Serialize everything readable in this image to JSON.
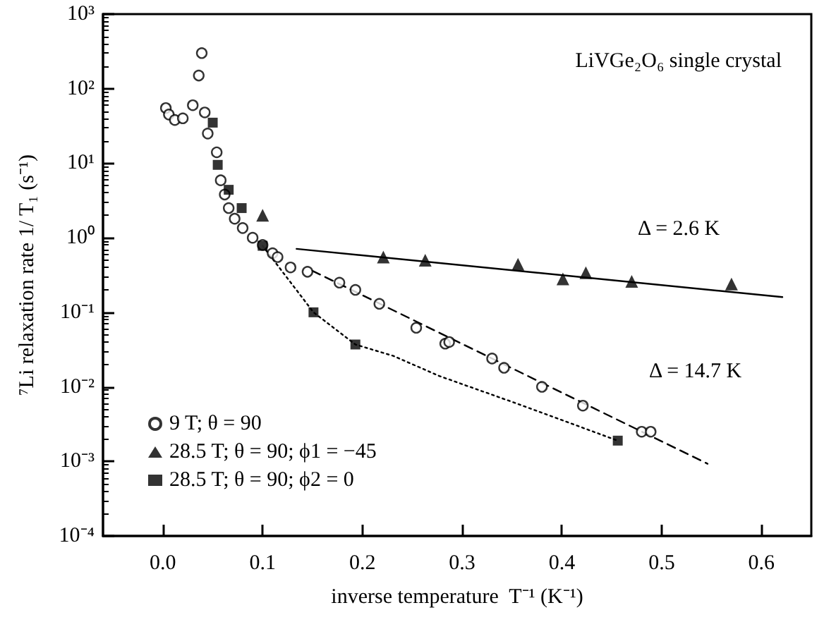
{
  "chart_data": {
    "type": "scatter",
    "xlabel": "inverse temperature  T⁻¹ (K⁻¹)",
    "ylabel": "⁷Li relaxation rate 1/ T₁ (s⁻¹)",
    "xlim": [
      -0.06,
      0.65
    ],
    "xticks": [
      {
        "value": 0,
        "label": "0.0"
      },
      {
        "value": 0.1,
        "label": "0.1"
      },
      {
        "value": 0.2,
        "label": "0.2"
      },
      {
        "value": 0.3,
        "label": "0.3"
      },
      {
        "value": 0.4,
        "label": "0.4"
      },
      {
        "value": 0.5,
        "label": "0.5"
      },
      {
        "value": 0.6,
        "label": "0.6"
      }
    ],
    "ylim": [
      0.0001,
      1000
    ],
    "yticks": [
      {
        "value": 0.0001,
        "label": "10⁻⁴"
      },
      {
        "value": 0.001,
        "label": "10⁻³"
      },
      {
        "value": 0.01,
        "label": "10⁻²"
      },
      {
        "value": 0.1,
        "label": "10⁻¹"
      },
      {
        "value": 1,
        "label": "10⁰"
      },
      {
        "value": 10,
        "label": "10¹"
      },
      {
        "value": 100,
        "label": "10²"
      },
      {
        "value": 1000,
        "label": "10³"
      }
    ],
    "log": "y",
    "grid": false,
    "legend": "bottom left",
    "annotations": [
      "LiVGe₂O₆ single crystal",
      "Δ = 2.6 K",
      "Δ = 14.7 K"
    ],
    "series": [
      {
        "name": "9 T; θ = 90",
        "marker": "circle",
        "color": "#000000",
        "x": [
          0.003,
          0.006,
          0.012,
          0.02,
          0.03,
          0.036,
          0.039,
          0.042,
          0.045,
          0.054,
          0.058,
          0.062,
          0.066,
          0.072,
          0.08,
          0.09,
          0.1,
          0.11,
          0.115,
          0.128,
          0.145,
          0.177,
          0.193,
          0.217,
          0.254,
          0.283,
          0.287,
          0.33,
          0.342,
          0.38,
          0.421,
          0.48,
          0.489
        ],
        "values": [
          55,
          45,
          38,
          40,
          60,
          150,
          300,
          48,
          25,
          14,
          5.9,
          3.8,
          2.5,
          1.8,
          1.35,
          1.0,
          0.8,
          0.62,
          0.55,
          0.4,
          0.35,
          0.25,
          0.2,
          0.13,
          0.062,
          0.038,
          0.04,
          0.024,
          0.018,
          0.01,
          0.0056,
          0.0025,
          0.0025
        ]
      },
      {
        "name": "28.5 T; θ = 90; ϕ1 = −45",
        "marker": "triangle",
        "color": "#000000",
        "x": [
          0.1,
          0.221,
          0.263,
          0.356,
          0.401,
          0.424,
          0.47,
          0.57
        ],
        "values": [
          2.0,
          0.55,
          0.5,
          0.44,
          0.28,
          0.34,
          0.26,
          0.24
        ]
      },
      {
        "name": "28.5 T; θ = 90; ϕ2 = 0",
        "marker": "square",
        "color": "#000000",
        "x": [
          0.05,
          0.055,
          0.066,
          0.079,
          0.1,
          0.151,
          0.193,
          0.456
        ],
        "values": [
          35,
          9.5,
          4.4,
          2.5,
          0.78,
          0.1,
          0.037,
          0.0019
        ]
      },
      {
        "type": "line",
        "marker": "none",
        "line_style": "solid",
        "color": "#000000",
        "x": [
          0.134,
          0.621
        ],
        "values": [
          0.71,
          0.16
        ]
      },
      {
        "type": "line",
        "marker": "none",
        "line_style": "dashed",
        "color": "#000000",
        "x": [
          0.15,
          0.546
        ],
        "values": [
          0.36,
          0.00093
        ]
      },
      {
        "type": "line",
        "marker": "none",
        "line_style": "dotted",
        "color": "#000000",
        "x": [
          0.1,
          0.151,
          0.193,
          0.231,
          0.277,
          0.35,
          0.456
        ],
        "values": [
          0.78,
          0.1,
          0.037,
          0.026,
          0.014,
          0.0063,
          0.0019
        ]
      }
    ]
  }
}
